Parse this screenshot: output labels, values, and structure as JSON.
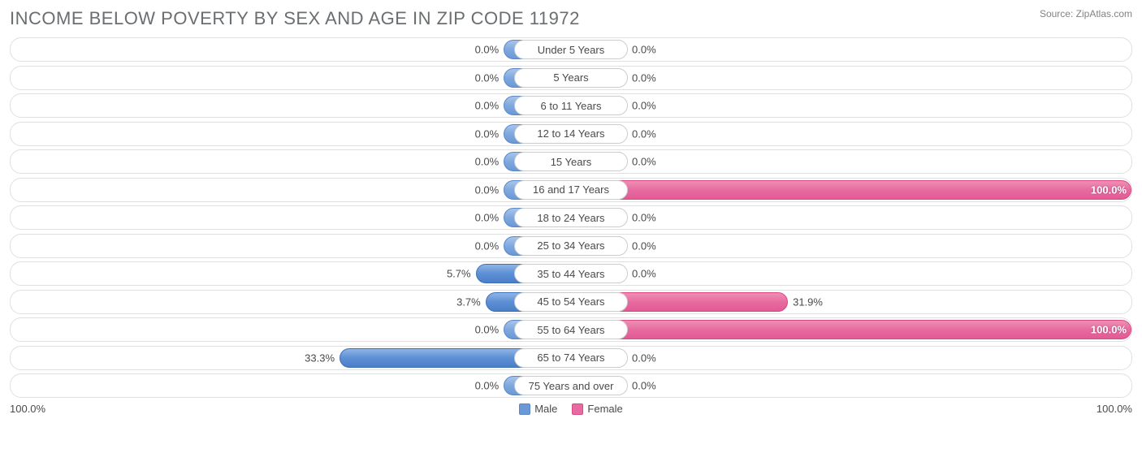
{
  "title": "INCOME BELOW POVERTY BY SEX AND AGE IN ZIP CODE 11972",
  "source": "Source: ZipAtlas.com",
  "chart": {
    "type": "diverging-bar",
    "axis_max_pct": 100.0,
    "male_base_width_pct": 12.0,
    "female_base_width_pct": 10.0,
    "scale_remaining_male_pct": 88.0,
    "scale_remaining_female_pct": 90.0,
    "colors": {
      "male_fill": "#6b98d6",
      "male_strong_fill": "#4a7fc8",
      "female_fill": "#ef9ab9",
      "female_strong_fill": "#e76ba0",
      "row_border": "#e0e0e0",
      "text": "#4a4a4a",
      "title_text": "#6b6e70",
      "background": "#ffffff"
    },
    "rows": [
      {
        "category": "Under 5 Years",
        "male_pct": 0.0,
        "female_pct": 0.0,
        "male_label": "0.0%",
        "female_label": "0.0%"
      },
      {
        "category": "5 Years",
        "male_pct": 0.0,
        "female_pct": 0.0,
        "male_label": "0.0%",
        "female_label": "0.0%"
      },
      {
        "category": "6 to 11 Years",
        "male_pct": 0.0,
        "female_pct": 0.0,
        "male_label": "0.0%",
        "female_label": "0.0%"
      },
      {
        "category": "12 to 14 Years",
        "male_pct": 0.0,
        "female_pct": 0.0,
        "male_label": "0.0%",
        "female_label": "0.0%"
      },
      {
        "category": "15 Years",
        "male_pct": 0.0,
        "female_pct": 0.0,
        "male_label": "0.0%",
        "female_label": "0.0%"
      },
      {
        "category": "16 and 17 Years",
        "male_pct": 0.0,
        "female_pct": 100.0,
        "male_label": "0.0%",
        "female_label": "100.0%"
      },
      {
        "category": "18 to 24 Years",
        "male_pct": 0.0,
        "female_pct": 0.0,
        "male_label": "0.0%",
        "female_label": "0.0%"
      },
      {
        "category": "25 to 34 Years",
        "male_pct": 0.0,
        "female_pct": 0.0,
        "male_label": "0.0%",
        "female_label": "0.0%"
      },
      {
        "category": "35 to 44 Years",
        "male_pct": 5.7,
        "female_pct": 0.0,
        "male_label": "5.7%",
        "female_label": "0.0%"
      },
      {
        "category": "45 to 54 Years",
        "male_pct": 3.7,
        "female_pct": 31.9,
        "male_label": "3.7%",
        "female_label": "31.9%"
      },
      {
        "category": "55 to 64 Years",
        "male_pct": 0.0,
        "female_pct": 100.0,
        "male_label": "0.0%",
        "female_label": "100.0%"
      },
      {
        "category": "65 to 74 Years",
        "male_pct": 33.3,
        "female_pct": 0.0,
        "male_label": "33.3%",
        "female_label": "0.0%"
      },
      {
        "category": "75 Years and over",
        "male_pct": 0.0,
        "female_pct": 0.0,
        "male_label": "0.0%",
        "female_label": "0.0%"
      }
    ]
  },
  "footer": {
    "left_axis": "100.0%",
    "right_axis": "100.0%",
    "legend": {
      "male": "Male",
      "female": "Female"
    }
  }
}
